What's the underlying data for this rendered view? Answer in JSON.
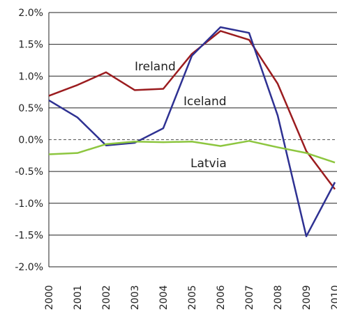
{
  "chart_data": {
    "type": "line",
    "categories": [
      "2000",
      "2001",
      "2002",
      "2003",
      "2004",
      "2005",
      "2006",
      "2007",
      "2008",
      "2009",
      "2010"
    ],
    "series": [
      {
        "name": "Ireland",
        "color": "#9b1c1f",
        "values": [
          0.69,
          0.86,
          1.06,
          0.78,
          0.8,
          1.35,
          1.71,
          1.57,
          0.88,
          -0.18,
          -0.78
        ]
      },
      {
        "name": "Iceland",
        "color": "#2e3192",
        "values": [
          0.62,
          0.35,
          -0.09,
          -0.05,
          0.18,
          1.32,
          1.77,
          1.68,
          0.38,
          -1.52,
          -0.67
        ]
      },
      {
        "name": "Latvia",
        "color": "#8dc63f",
        "values": [
          -0.23,
          -0.21,
          -0.07,
          -0.03,
          -0.04,
          -0.03,
          -0.1,
          -0.02,
          -0.12,
          -0.21,
          -0.36
        ]
      }
    ],
    "ylim": [
      -2,
      2
    ],
    "yticks": [
      {
        "value": -2,
        "label": "-2.0%"
      },
      {
        "value": -1.5,
        "label": "-1.5%"
      },
      {
        "value": -1,
        "label": "-1.0%"
      },
      {
        "value": -0.5,
        "label": "-0.5%"
      },
      {
        "value": 0,
        "label": "0.0%"
      },
      {
        "value": 0.5,
        "label": "0.5%"
      },
      {
        "value": 1,
        "label": "1.0%"
      },
      {
        "value": 1.5,
        "label": "1.5%"
      },
      {
        "value": 2,
        "label": "2.0%"
      }
    ],
    "grid": true
  }
}
